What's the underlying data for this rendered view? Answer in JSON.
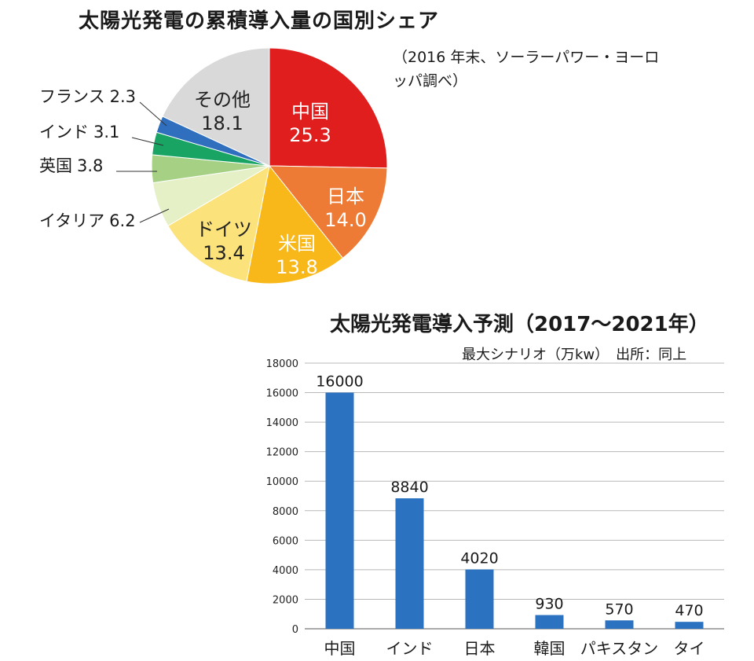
{
  "chart_data": [
    {
      "type": "pie",
      "title": "太陽光発電の累積導入量の国別シェア",
      "source": "（2016 年末、ソーラーパワー・ヨーロッパ調べ）",
      "slices": [
        {
          "label": "中国",
          "value": 25.3,
          "value_text": "25.3",
          "color": "#e01e1e"
        },
        {
          "label": "日本",
          "value": 14.0,
          "value_text": "14.0",
          "color": "#ee7b35"
        },
        {
          "label": "米国",
          "value": 13.8,
          "value_text": "13.8",
          "color": "#f9b819"
        },
        {
          "label": "ドイツ",
          "value": 13.4,
          "value_text": "13.4",
          "color": "#fbe27a"
        },
        {
          "label": "イタリア",
          "value": 6.2,
          "value_text": "6.2",
          "color": "#e5f0c6"
        },
        {
          "label": "英国",
          "value": 3.8,
          "value_text": "3.8",
          "color": "#a6d184"
        },
        {
          "label": "インド",
          "value": 3.1,
          "value_text": "3.1",
          "color": "#19a463"
        },
        {
          "label": "フランス",
          "value": 2.3,
          "value_text": "2.3",
          "color": "#2f6fbe"
        },
        {
          "label": "その他",
          "value": 18.1,
          "value_text": "18.1",
          "color": "#d9d9d9"
        }
      ]
    },
    {
      "type": "bar",
      "title": "太陽光発電導入予測（2017〜2021年）",
      "subtitle": "最大シナリオ（万kw）　出所：同上",
      "categories": [
        "中国",
        "インド",
        "日本",
        "韓国",
        "パキスタン",
        "タイ"
      ],
      "values": [
        16000,
        8840,
        4020,
        930,
        570,
        470
      ],
      "ylim": [
        0,
        18000
      ],
      "yticks": [
        "0",
        "2000",
        "4000",
        "6000",
        "8000",
        "10000",
        "12000",
        "14000",
        "16000",
        "18000"
      ],
      "bar_color": "#2b73c0",
      "grid": true
    }
  ]
}
